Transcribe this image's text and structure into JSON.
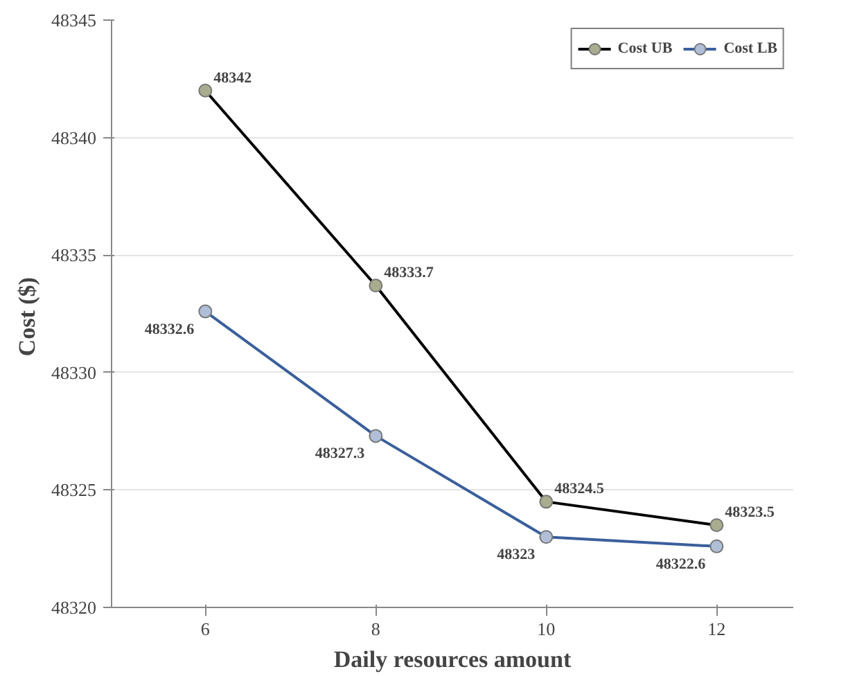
{
  "chart_data": {
    "type": "line",
    "xlabel": "Daily resources amount",
    "ylabel": "Cost  ($)",
    "x": [
      6,
      8,
      10,
      12
    ],
    "xlim": [
      4.9,
      12.9
    ],
    "xticks": [
      6,
      8,
      10,
      12
    ],
    "ylim": [
      48320,
      48345
    ],
    "yticks": [
      48320,
      48325,
      48330,
      48335,
      48340,
      48345
    ],
    "series": [
      {
        "name": "Cost UB",
        "color": "#000000",
        "values": [
          48342,
          48333.7,
          48324.5,
          48323.5
        ]
      },
      {
        "name": "Cost LB",
        "color": "#3a5f9c",
        "values": [
          48332.6,
          48327.3,
          48323,
          48322.6
        ]
      }
    ],
    "data_labels": true,
    "grid": "y",
    "legend": "top right",
    "marker": "circle",
    "line_style": "solid"
  }
}
